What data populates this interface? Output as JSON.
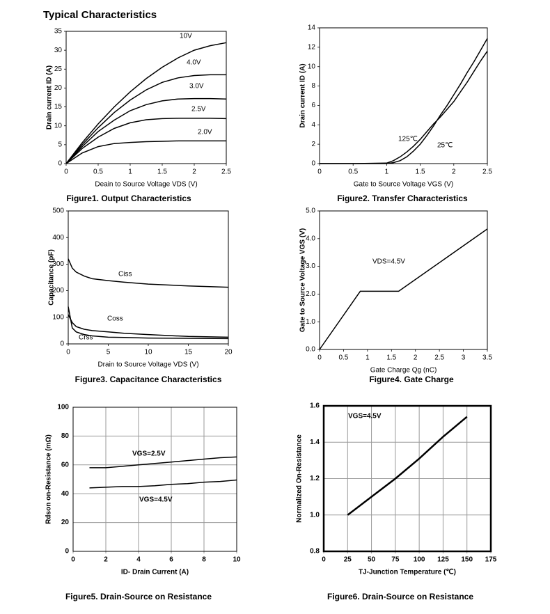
{
  "title": "Typical Characteristics",
  "chart_data": [
    {
      "type": "line",
      "caption": "Figure1. Output Characteristics",
      "xlabel": "Deain to Source Voltage VDS (V)",
      "ylabel": "Drain current ID (A)",
      "x": [
        0,
        0.25,
        0.5,
        0.75,
        1,
        1.25,
        1.5,
        1.75,
        2,
        2.25,
        2.5
      ],
      "series": [
        {
          "name": "10V",
          "color": "#000000",
          "values": [
            0,
            5.5,
            10.5,
            15,
            19,
            22.5,
            25.5,
            28,
            30,
            31.2,
            32
          ]
        },
        {
          "name": "4.0V",
          "color": "#000000",
          "values": [
            0,
            5,
            9.5,
            13.5,
            16.8,
            19.5,
            21.5,
            22.7,
            23.3,
            23.5,
            23.5
          ]
        },
        {
          "name": "3.0V",
          "color": "#000000",
          "values": [
            0,
            4.5,
            8.5,
            11.5,
            14,
            15.6,
            16.6,
            17.1,
            17.2,
            17.2,
            17.1
          ]
        },
        {
          "name": "2.5V",
          "color": "#000000",
          "values": [
            0,
            4,
            7,
            9.3,
            10.8,
            11.6,
            11.9,
            12,
            12,
            12,
            11.9
          ]
        },
        {
          "name": "2.0V",
          "color": "#000000",
          "values": [
            0,
            2.8,
            4.5,
            5.3,
            5.6,
            5.8,
            5.9,
            6,
            6,
            6,
            6
          ]
        }
      ],
      "xlim": [
        0,
        2.5
      ],
      "ylim": [
        0,
        35
      ],
      "xticks": [
        0,
        0.5,
        1,
        1.5,
        2,
        2.5
      ],
      "yticks": [
        0,
        5,
        10,
        15,
        20,
        25,
        30,
        35
      ],
      "grid": false
    },
    {
      "type": "line",
      "caption": "Figure2. Transfer Characteristics",
      "xlabel": "Gate to Source Voltage VGS (V)",
      "ylabel": "Drain current ID (A)",
      "x": [
        0,
        0.5,
        1,
        1.1,
        1.2,
        1.3,
        1.4,
        1.5,
        1.6,
        1.7,
        1.8,
        1.9,
        2,
        2.1,
        2.2,
        2.3,
        2.4,
        2.5
      ],
      "series": [
        {
          "name": "125℃",
          "color": "#000000",
          "values": [
            0,
            0,
            0.05,
            0.3,
            0.7,
            1.2,
            1.8,
            2.5,
            3.3,
            4.1,
            4.8,
            5.6,
            6.4,
            7.4,
            8.4,
            9.5,
            10.6,
            11.6
          ]
        },
        {
          "name": "25℃",
          "color": "#000000",
          "values": [
            0,
            0,
            0,
            0.1,
            0.3,
            0.7,
            1.3,
            2,
            2.9,
            3.9,
            5,
            6,
            7.1,
            8.2,
            9.4,
            10.5,
            11.7,
            12.9
          ]
        }
      ],
      "xlim": [
        0,
        2.5
      ],
      "ylim": [
        0,
        14
      ],
      "xticks": [
        0,
        0.5,
        1,
        1.5,
        2,
        2.5
      ],
      "yticks": [
        0,
        2,
        4,
        6,
        8,
        10,
        12,
        14
      ],
      "grid": false
    },
    {
      "type": "line",
      "caption": "Figure3. Capacitance Characteristics",
      "xlabel": "Drain to Source Voltage VDS (V)",
      "ylabel": "Capacitance (pF)",
      "x": [
        0,
        0.5,
        1,
        2,
        3,
        5,
        7,
        10,
        15,
        20
      ],
      "series": [
        {
          "name": "Ciss",
          "color": "#000000",
          "values": [
            320,
            285,
            270,
            255,
            245,
            238,
            232,
            225,
            218,
            213
          ]
        },
        {
          "name": "Coss",
          "color": "#000000",
          "values": [
            110,
            80,
            65,
            55,
            50,
            45,
            40,
            35,
            28,
            25
          ]
        },
        {
          "name": "Crss",
          "color": "#000000",
          "values": [
            140,
            60,
            45,
            35,
            30,
            25,
            24,
            22,
            21,
            20
          ]
        }
      ],
      "xlim": [
        0,
        20
      ],
      "ylim": [
        0,
        500
      ],
      "xticks": [
        0,
        5,
        10,
        15,
        20
      ],
      "yticks": [
        0,
        100,
        200,
        300,
        400,
        500
      ],
      "grid": false
    },
    {
      "type": "line",
      "caption": "Figure4. Gate Charge",
      "xlabel": "Gate Charge Qg (nC)",
      "ylabel": "Gate to Source Voltage VGS (V)",
      "x": [
        0,
        0.85,
        1.65,
        3.5
      ],
      "series": [
        {
          "name": "VDS=4.5V",
          "color": "#000000",
          "values": [
            0,
            2.1,
            2.1,
            4.35
          ]
        }
      ],
      "xlim": [
        0,
        3.5
      ],
      "ylim": [
        0,
        5
      ],
      "xticks": [
        0,
        0.5,
        1,
        1.5,
        2,
        2.5,
        3,
        3.5
      ],
      "yticks": [
        {
          "value": 0,
          "label": "0.0"
        },
        {
          "value": 1,
          "label": "1.0"
        },
        {
          "value": 2,
          "label": "2.0"
        },
        {
          "value": 3,
          "label": "3.0"
        },
        {
          "value": 4,
          "label": "4.0"
        },
        {
          "value": 5,
          "label": "5.0"
        }
      ],
      "grid": false
    },
    {
      "type": "line",
      "caption": "Figure5. Drain-Source on Resistance",
      "xlabel": "ID- Drain Current (A)",
      "ylabel": "Rdson on-Resistance (mΩ)",
      "x": [
        1,
        2,
        3,
        4,
        5,
        6,
        7,
        8,
        9,
        10
      ],
      "series": [
        {
          "name": "VGS=2.5V",
          "color": "#000000",
          "values": [
            58,
            58,
            59,
            60,
            61,
            62,
            63,
            64,
            65,
            65.5
          ]
        },
        {
          "name": "VGS=4.5V",
          "color": "#000000",
          "values": [
            44,
            44.5,
            45,
            45,
            45.5,
            46.5,
            47,
            48,
            48.5,
            49.5
          ]
        }
      ],
      "xlim": [
        0,
        10
      ],
      "ylim": [
        0,
        100
      ],
      "xticks": [
        0,
        2,
        4,
        6,
        8,
        10
      ],
      "yticks": [
        0,
        20,
        40,
        60,
        80,
        100
      ],
      "grid": true
    },
    {
      "type": "line",
      "caption": "Figure6. Drain-Source on Resistance",
      "xlabel": "TJ-Junction Temperature (℃)",
      "ylabel": "Normalized On-Resistance",
      "x": [
        25,
        50,
        75,
        100,
        125,
        150
      ],
      "series": [
        {
          "name": "VGS=4.5V",
          "color": "#000000",
          "values": [
            1.0,
            1.1,
            1.2,
            1.31,
            1.43,
            1.54
          ]
        }
      ],
      "xlim": [
        0,
        175
      ],
      "ylim": [
        0.8,
        1.6
      ],
      "xticks": [
        0,
        25,
        50,
        75,
        100,
        125,
        150,
        175
      ],
      "yticks": [
        0.8,
        {
          "value": 1,
          "label": "1.0"
        },
        1.2,
        1.4,
        1.6
      ],
      "grid": true
    }
  ]
}
